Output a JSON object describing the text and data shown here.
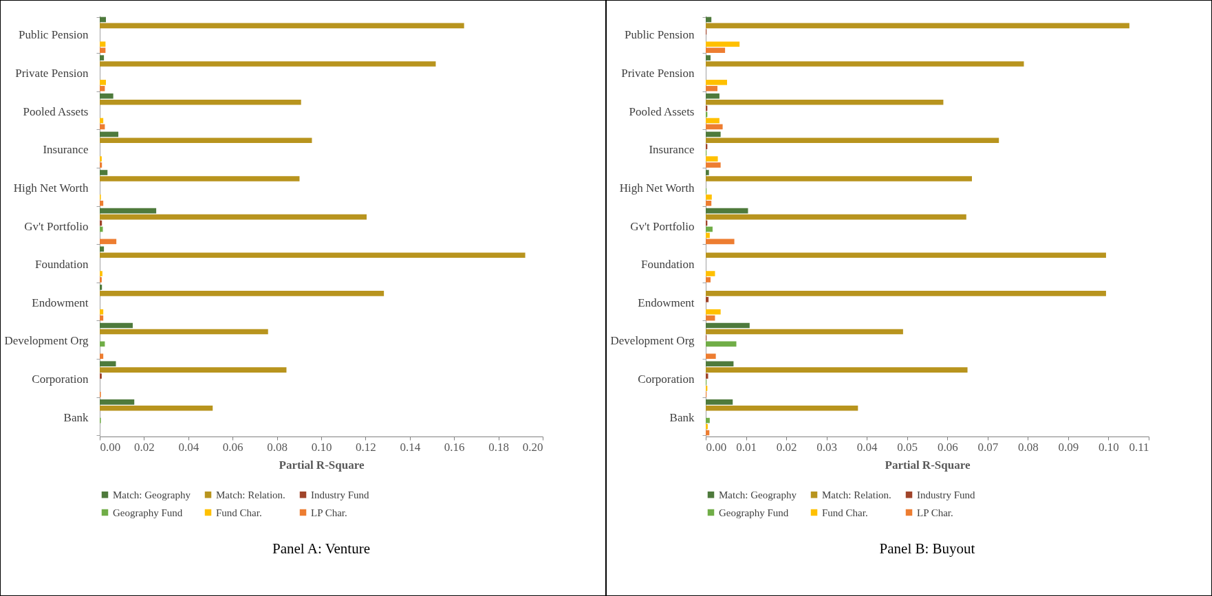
{
  "chart_data": [
    {
      "type": "bar",
      "orientation": "horizontal",
      "title": "Panel A: Venture",
      "xlabel": "Partial R-Square",
      "legend": "bottom",
      "grid": false,
      "categories": [
        "Public Pension",
        "Private Pension",
        "Pooled Assets",
        "Insurance",
        "High Net Worth",
        "Gv't Portfolio",
        "Foundation",
        "Endowment",
        "Development Org",
        "Corporation",
        "Bank"
      ],
      "xlim": [
        0,
        0.2
      ],
      "xticks": [
        {
          "value": 0,
          "label": "0.00"
        },
        {
          "value": 0.02,
          "label": "0.02"
        },
        {
          "value": 0.04,
          "label": "0.04"
        },
        {
          "value": 0.06,
          "label": "0.06"
        },
        {
          "value": 0.08,
          "label": "0.08"
        },
        {
          "value": 0.1,
          "label": "0.10"
        },
        {
          "value": 0.12,
          "label": "0.12"
        },
        {
          "value": 0.14,
          "label": "0.14"
        },
        {
          "value": 0.16,
          "label": "0.16"
        },
        {
          "value": 0.18,
          "label": "0.18"
        },
        {
          "value": 0.2,
          "label": "0.20"
        }
      ],
      "series": [
        {
          "name": "Match: Geography",
          "color": "#4e7a3c",
          "values": [
            0.0028,
            0.0019,
            0.0061,
            0.0084,
            0.0035,
            0.0255,
            0.0019,
            0.001,
            0.0149,
            0.0073,
            0.0156
          ]
        },
        {
          "name": "Match: Relation.",
          "color": "#b8941e",
          "values": [
            0.1645,
            0.1517,
            0.0909,
            0.0958,
            0.0902,
            0.1205,
            0.1921,
            0.1283,
            0.076,
            0.0843,
            0.051
          ]
        },
        {
          "name": "Industry Fund",
          "color": "#a0442a",
          "values": [
            0,
            0,
            0,
            0,
            0,
            0.001,
            0,
            0,
            0,
            0.0009,
            0
          ]
        },
        {
          "name": "Geography Fund",
          "color": "#70ad47",
          "values": [
            0,
            0,
            0,
            0,
            0,
            0.0014,
            0,
            0,
            0.0023,
            0,
            0.0005
          ]
        },
        {
          "name": "Fund Char.",
          "color": "#ffc000",
          "values": [
            0.0026,
            0.0028,
            0.0016,
            0.0009,
            0.0005,
            0,
            0.0012,
            0.0016,
            0,
            0,
            0
          ]
        },
        {
          "name": "LP Char.",
          "color": "#ed7d31",
          "values": [
            0.0026,
            0.0023,
            0.0023,
            0.001,
            0.0016,
            0.0075,
            0.0009,
            0.0016,
            0.0016,
            0.0005,
            0
          ]
        }
      ]
    },
    {
      "type": "bar",
      "orientation": "horizontal",
      "title": "Panel B: Buyout",
      "xlabel": "Partial R-Square",
      "legend": "bottom",
      "grid": false,
      "categories": [
        "Public Pension",
        "Private Pension",
        "Pooled Assets",
        "Insurance",
        "High Net Worth",
        "Gv't Portfolio",
        "Foundation",
        "Endowment",
        "Development Org",
        "Corporation",
        "Bank"
      ],
      "xlim": [
        0,
        0.11
      ],
      "xticks": [
        {
          "value": 0,
          "label": "0.00"
        },
        {
          "value": 0.01,
          "label": "0.01"
        },
        {
          "value": 0.02,
          "label": "0.02"
        },
        {
          "value": 0.03,
          "label": "0.03"
        },
        {
          "value": 0.04,
          "label": "0.04"
        },
        {
          "value": 0.05,
          "label": "0.05"
        },
        {
          "value": 0.06,
          "label": "0.06"
        },
        {
          "value": 0.07,
          "label": "0.07"
        },
        {
          "value": 0.08,
          "label": "0.08"
        },
        {
          "value": 0.09,
          "label": "0.09"
        },
        {
          "value": 0.1,
          "label": "0.10"
        },
        {
          "value": 0.11,
          "label": "0.11"
        }
      ],
      "series": [
        {
          "name": "Match: Geography",
          "color": "#4e7a3c",
          "values": [
            0.0014,
            0.0012,
            0.0034,
            0.0037,
            0.0008,
            0.0105,
            0,
            0,
            0.0109,
            0.0069,
            0.0067
          ]
        },
        {
          "name": "Match: Relation.",
          "color": "#b8941e",
          "values": [
            0.1052,
            0.079,
            0.059,
            0.0728,
            0.0661,
            0.0647,
            0.0994,
            0.0994,
            0.049,
            0.065,
            0.0378
          ]
        },
        {
          "name": "Industry Fund",
          "color": "#a0442a",
          "values": [
            0.0002,
            0,
            0.0004,
            0.0004,
            0,
            0.0004,
            0,
            0.0007,
            0.0002,
            0.0006,
            0
          ]
        },
        {
          "name": "Geography Fund",
          "color": "#70ad47",
          "values": [
            0,
            0,
            0.0004,
            0.0002,
            0.0002,
            0.0017,
            0,
            0,
            0.0076,
            0.0002,
            0.001
          ]
        },
        {
          "name": "Fund Char.",
          "color": "#ffc000",
          "values": [
            0.0084,
            0.0053,
            0.0034,
            0.003,
            0.0015,
            0.001,
            0.0023,
            0.0037,
            0,
            0.0004,
            0.0005
          ]
        },
        {
          "name": "LP Char.",
          "color": "#ed7d31",
          "values": [
            0.0048,
            0.0029,
            0.0042,
            0.0037,
            0.0014,
            0.0071,
            0.0012,
            0.0023,
            0.0025,
            0.0002,
            0.0009
          ]
        }
      ]
    }
  ]
}
